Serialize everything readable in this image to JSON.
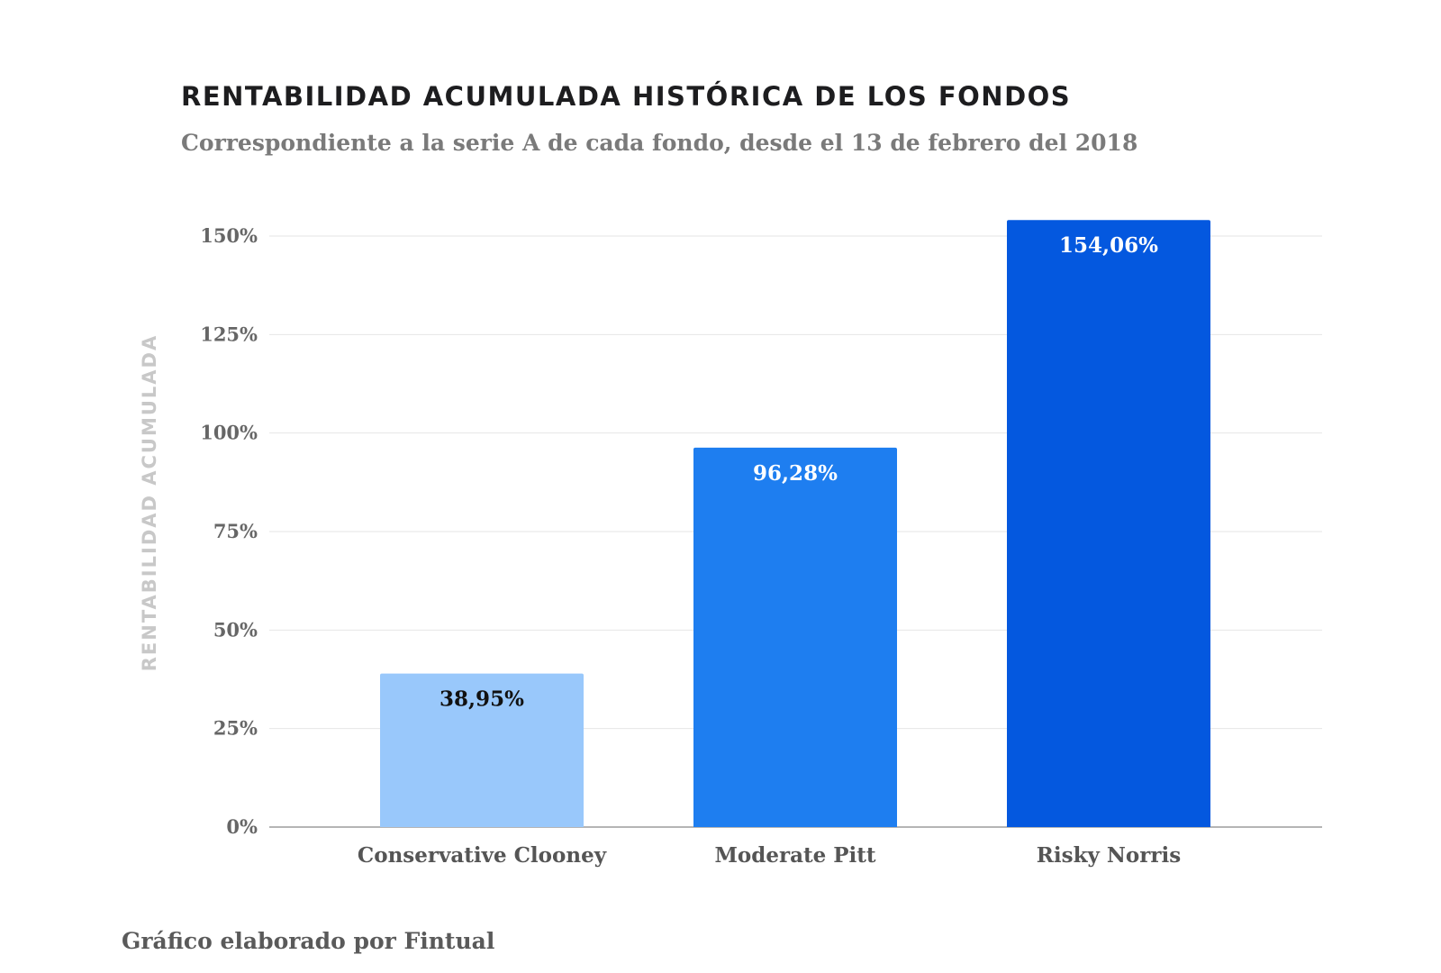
{
  "chart_data": {
    "type": "bar",
    "title": "RENTABILIDAD ACUMULADA HISTÓRICA DE LOS FONDOS",
    "subtitle": "Correspondiente a la serie A de cada fondo, desde el 13 de febrero del 2018",
    "xlabel": "",
    "ylabel": "RENTABILIDAD ACUMULADA",
    "categories": [
      "Conservative Clooney",
      "Moderate Pitt",
      "Risky Norris"
    ],
    "values": [
      38.95,
      96.28,
      154.06
    ],
    "data_labels": [
      "38,95%",
      "96,28%",
      "154,06%"
    ],
    "bar_colors": [
      "#99c8fb",
      "#1e7ef0",
      "#0458df"
    ],
    "label_colors": [
      "#111111",
      "#ffffff",
      "#ffffff"
    ],
    "ylim": [
      0,
      150
    ],
    "yticks": [
      0,
      25,
      50,
      75,
      100,
      125,
      150
    ],
    "ytick_labels": [
      "0%",
      "25%",
      "50%",
      "75%",
      "100%",
      "125%",
      "150%"
    ],
    "grid": true,
    "legend": "none"
  },
  "footer": "Gráfico elaborado por Fintual"
}
